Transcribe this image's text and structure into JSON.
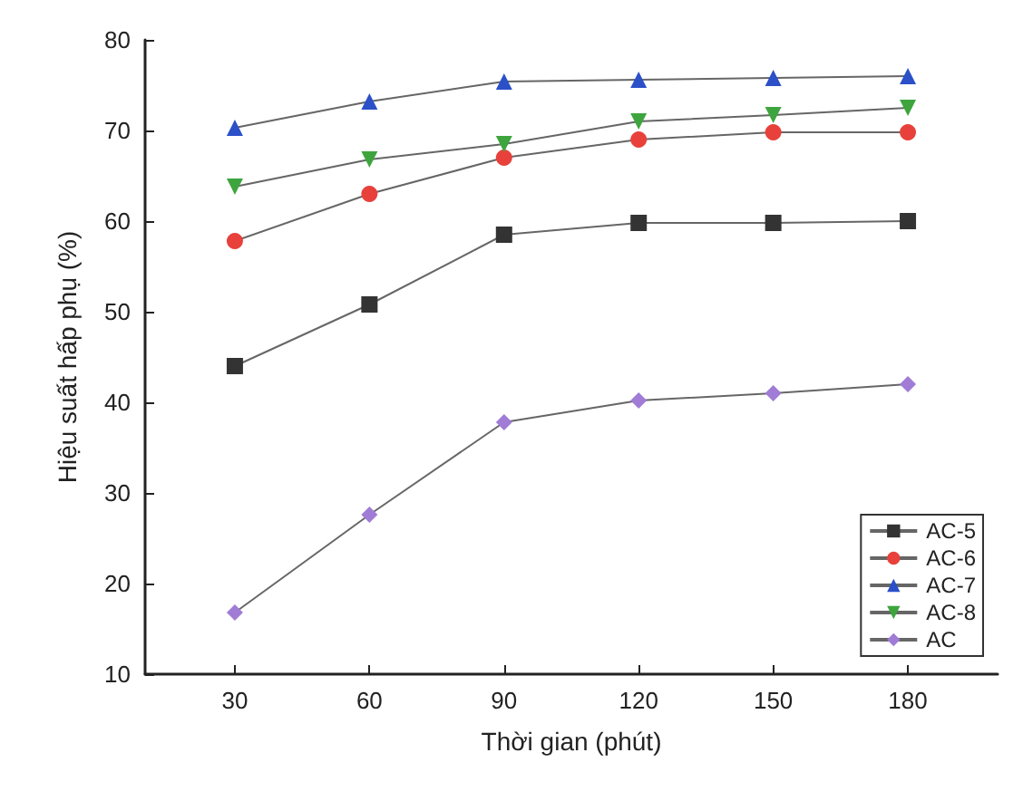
{
  "chart_data": {
    "type": "line",
    "xlabel": "Thời gian (phút)",
    "ylabel": "Hiệu suất hấp phụ (%)",
    "x": [
      30,
      60,
      90,
      120,
      150,
      180
    ],
    "xlim": [
      10,
      200
    ],
    "xticks": [
      30,
      60,
      90,
      120,
      150,
      180
    ],
    "ylim": [
      10,
      80
    ],
    "yticks": [
      10,
      20,
      30,
      40,
      50,
      60,
      70,
      80
    ],
    "grid": false,
    "legend": "bottom right",
    "line_style": "solid",
    "series": [
      {
        "name": "AC-5",
        "color": "#333333",
        "marker": "square",
        "values": [
          44,
          50.8,
          58.5,
          59.8,
          59.8,
          60
        ]
      },
      {
        "name": "AC-6",
        "color": "#e8413c",
        "marker": "circle",
        "values": [
          57.8,
          63,
          67,
          69,
          69.8,
          69.8
        ]
      },
      {
        "name": "AC-7",
        "color": "#2b50c8",
        "marker": "triangle",
        "values": [
          70.3,
          73.2,
          75.4,
          75.6,
          75.8,
          76
        ]
      },
      {
        "name": "AC-8",
        "color": "#3ea53e",
        "marker": "triangle-down",
        "values": [
          63.8,
          66.8,
          68.5,
          71,
          71.7,
          72.5
        ]
      },
      {
        "name": "AC",
        "color": "#a07cd6",
        "marker": "diamond",
        "values": [
          16.8,
          27.6,
          37.8,
          40.2,
          41,
          42
        ]
      }
    ]
  }
}
